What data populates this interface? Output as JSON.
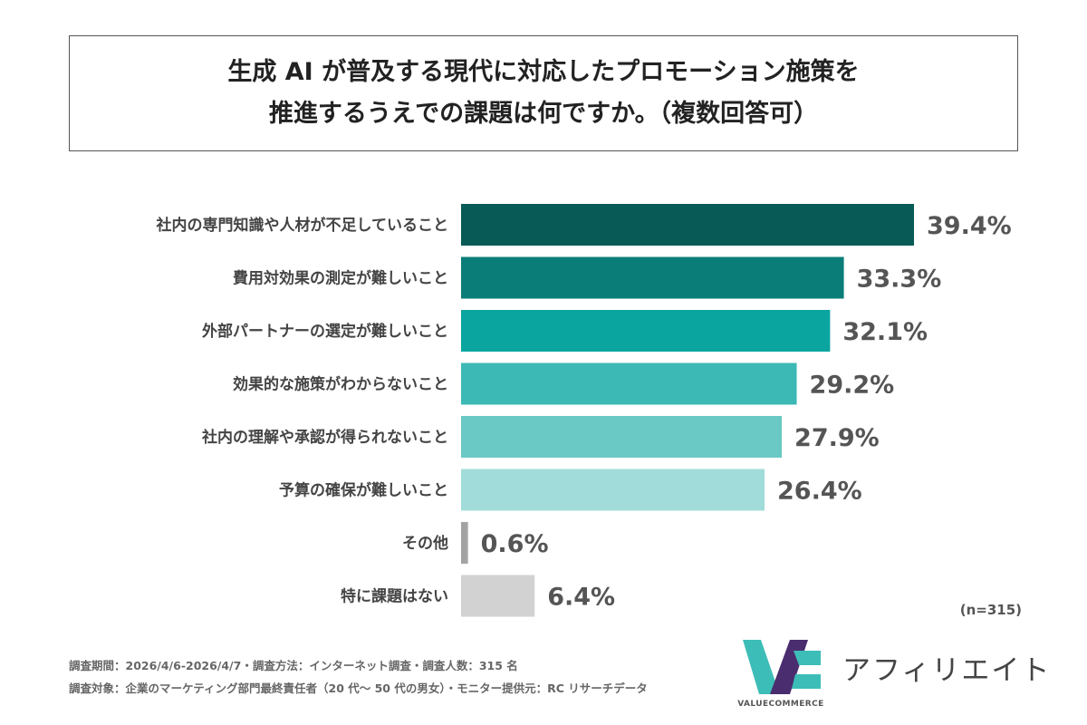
{
  "title": {
    "line1": "生成 AI が普及する現代に対応したプロモーション施策を",
    "line2": "推進するうえでの課題は何ですか。（複数回答可）"
  },
  "chart_data": {
    "type": "bar",
    "orientation": "horizontal",
    "categories": [
      "社内の専門知識や人材が不足していること",
      "費用対効果の測定が難しいこと",
      "外部パートナーの選定が難しいこと",
      "効果的な施策がわからないこと",
      "社内の理解や承認が得られないこと",
      "予算の確保が難しいこと",
      "その他",
      "特に課題はない"
    ],
    "values": [
      39.4,
      33.3,
      32.1,
      29.2,
      27.9,
      26.4,
      0.6,
      6.4
    ],
    "value_labels": [
      "39.4%",
      "33.3%",
      "32.1%",
      "29.2%",
      "27.9%",
      "26.4%",
      "0.6%",
      "6.4%"
    ],
    "colors": [
      "#075a55",
      "#0b7d78",
      "#0aa59f",
      "#3cb9b5",
      "#6ac8c5",
      "#a1dcda",
      "#a3a3a3",
      "#d2d2d2"
    ],
    "xlim": [
      0,
      40
    ],
    "grid": false,
    "legend": "none"
  },
  "sample_size": "(n=315)",
  "footnotes": [
    "調査期間：2026/4/6-2026/4/7・調査方法：インターネット調査・調査人数：315 名",
    "調査対象：企業のマーケティング部門最終責任者（20 代～ 50 代の男女）・モニター提供元：RC リサーチデータ"
  ],
  "logo": {
    "sub": "VALUECOMMERCE",
    "text": "アフィリエイト",
    "colors": [
      "#3dbdb7",
      "#4a2d6e"
    ]
  }
}
